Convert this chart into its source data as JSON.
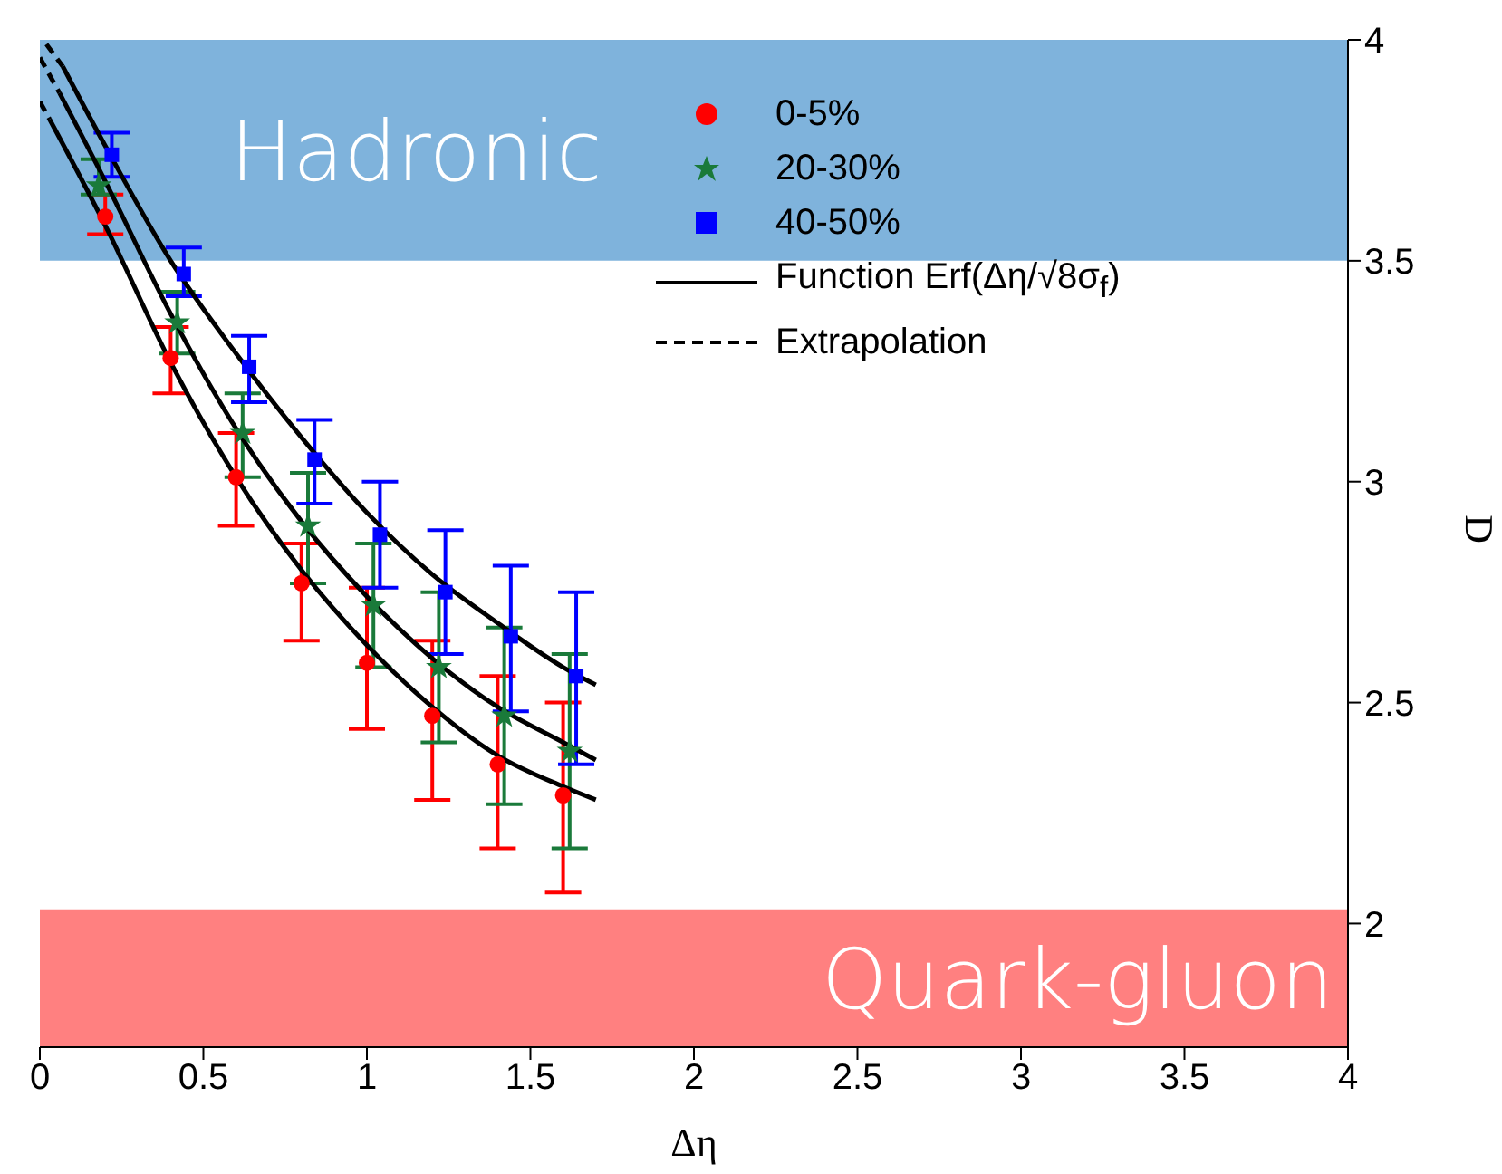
{
  "chart_data": {
    "type": "scatter",
    "xlabel": "Δη",
    "ylabel": "D",
    "xlim": [
      0,
      4
    ],
    "xticks": [
      0,
      0.5,
      1,
      1.5,
      2,
      2.5,
      3,
      3.5,
      4
    ],
    "ylim": [
      1.72,
      4
    ],
    "yticks": [
      2,
      2.5,
      3,
      3.5,
      4
    ],
    "grid": false,
    "legend": "top",
    "bands": [
      {
        "axis": "y",
        "from": 3.5,
        "to": 4,
        "label": "Hadronic",
        "color": "#7fb3dc"
      },
      {
        "axis": "y",
        "from": 1.72,
        "to": 2.03,
        "label": "Quark-gluon",
        "color": "#ff8080"
      }
    ],
    "series": [
      {
        "name": "0-5%",
        "type": "scatter",
        "marker": "circle",
        "color": "#ff0000",
        "x": [
          0.2,
          0.4,
          0.6,
          0.8,
          1.0,
          1.2,
          1.4,
          1.6
        ],
        "values": [
          3.6,
          3.28,
          3.01,
          2.77,
          2.59,
          2.47,
          2.36,
          2.29
        ],
        "errors": [
          [
            3.56,
            3.65
          ],
          [
            3.2,
            3.35
          ],
          [
            2.9,
            3.11
          ],
          [
            2.64,
            2.86
          ],
          [
            2.44,
            2.76
          ],
          [
            2.28,
            2.64
          ],
          [
            2.17,
            2.56
          ],
          [
            2.07,
            2.5
          ]
        ]
      },
      {
        "name": "20-30%",
        "type": "scatter",
        "marker": "star",
        "color": "#1a7a3a",
        "x": [
          0.18,
          0.42,
          0.62,
          0.82,
          1.02,
          1.22,
          1.42,
          1.62
        ],
        "values": [
          3.67,
          3.36,
          3.11,
          2.9,
          2.72,
          2.58,
          2.47,
          2.39
        ],
        "errors": [
          [
            3.65,
            3.73
          ],
          [
            3.29,
            3.43
          ],
          [
            3.01,
            3.2
          ],
          [
            2.77,
            3.02
          ],
          [
            2.58,
            2.86
          ],
          [
            2.41,
            2.75
          ],
          [
            2.27,
            2.67
          ],
          [
            2.17,
            2.61
          ]
        ]
      },
      {
        "name": "40-50%",
        "type": "scatter",
        "marker": "square",
        "color": "#0000ff",
        "x": [
          0.22,
          0.44,
          0.64,
          0.84,
          1.04,
          1.24,
          1.44,
          1.64
        ],
        "values": [
          3.74,
          3.47,
          3.26,
          3.05,
          2.88,
          2.75,
          2.65,
          2.56
        ],
        "errors": [
          [
            3.69,
            3.79
          ],
          [
            3.42,
            3.53
          ],
          [
            3.18,
            3.33
          ],
          [
            2.95,
            3.14
          ],
          [
            2.76,
            3.0
          ],
          [
            2.61,
            2.89
          ],
          [
            2.48,
            2.81
          ],
          [
            2.36,
            2.75
          ]
        ]
      },
      {
        "name": "Function Erf(Δη/√8σ$_{f}$)",
        "type": "line",
        "line_style": "solid",
        "color": "#000000",
        "x": [
          0.03,
          0.2,
          0.4,
          0.6,
          0.8,
          1.0,
          1.2,
          1.4,
          1.6,
          1.7
        ],
        "values": [
          3.82,
          3.58,
          3.27,
          3.01,
          2.8,
          2.63,
          2.49,
          2.38,
          2.31,
          2.28
        ]
      },
      {
        "type": "line",
        "line_style": "solid",
        "color": "#000000",
        "x": [
          0.06,
          0.2,
          0.4,
          0.6,
          0.8,
          1.0,
          1.2,
          1.4,
          1.6,
          1.7
        ],
        "values": [
          3.88,
          3.68,
          3.38,
          3.12,
          2.91,
          2.74,
          2.6,
          2.49,
          2.41,
          2.37
        ]
      },
      {
        "type": "line",
        "line_style": "solid",
        "color": "#000000",
        "x": [
          0.07,
          0.2,
          0.4,
          0.6,
          0.8,
          1.0,
          1.2,
          1.4,
          1.6,
          1.7
        ],
        "values": [
          3.94,
          3.76,
          3.5,
          3.29,
          3.1,
          2.93,
          2.79,
          2.68,
          2.58,
          2.54
        ]
      },
      {
        "name": "Extrapolation",
        "type": "line",
        "line_style": "dashed",
        "color": "#000000",
        "x": [
          0.0,
          0.03
        ],
        "values": [
          3.86,
          3.82
        ]
      },
      {
        "type": "line",
        "line_style": "dashed",
        "color": "#000000",
        "x": [
          0.0,
          0.06
        ],
        "values": [
          3.96,
          3.88
        ]
      },
      {
        "type": "line",
        "line_style": "dashed",
        "color": "#000000",
        "x": [
          0.02,
          0.07
        ],
        "values": [
          3.99,
          3.94
        ]
      }
    ]
  }
}
